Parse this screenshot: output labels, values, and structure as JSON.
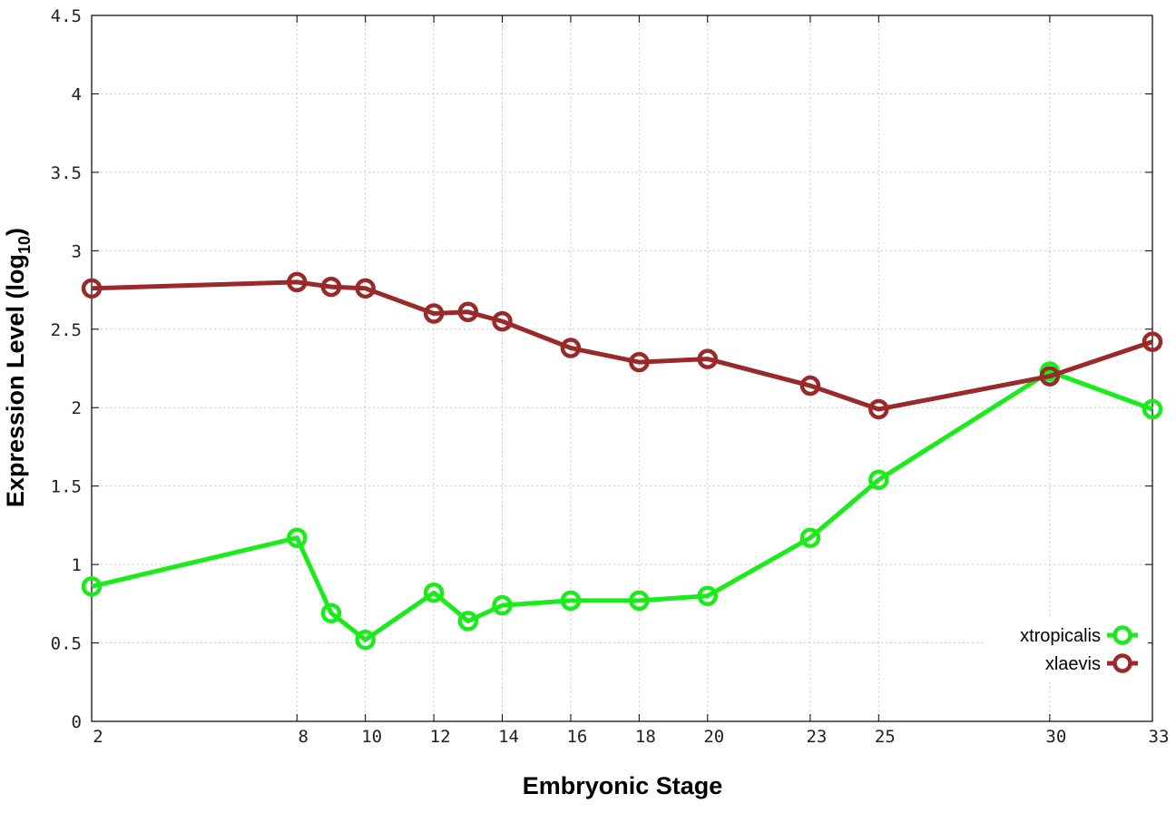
{
  "chart_data": {
    "type": "line",
    "title": "",
    "xlabel": "Embryonic Stage",
    "ylabel_main": "Expression Level (log",
    "ylabel_sub": "10",
    "ylabel_close": ")",
    "x": [
      2,
      8,
      9,
      10,
      12,
      13,
      14,
      16,
      18,
      20,
      23,
      25,
      30,
      33
    ],
    "x_ticks": [
      2,
      8,
      10,
      12,
      14,
      16,
      18,
      20,
      23,
      25,
      30,
      33
    ],
    "x_tick_labels": [
      "2",
      "8",
      "10",
      "12",
      "14",
      "16",
      "18",
      "20",
      "23",
      "25",
      "30",
      "33"
    ],
    "xlim": [
      2,
      33
    ],
    "y_ticks": [
      0,
      0.5,
      1,
      1.5,
      2,
      2.5,
      3,
      3.5,
      4,
      4.5
    ],
    "y_tick_labels": [
      "0",
      "0.5",
      "1",
      "1.5",
      "2",
      "2.5",
      "3",
      "3.5",
      "4",
      "4.5"
    ],
    "ylim": [
      0,
      4.5
    ],
    "grid": true,
    "legend_position": "bottom-right",
    "series": [
      {
        "name": "xtropicalis",
        "color": "#1aeb1a",
        "values": [
          0.86,
          1.17,
          0.69,
          0.52,
          0.82,
          0.64,
          0.74,
          0.77,
          0.77,
          0.8,
          1.17,
          1.54,
          2.23,
          1.99
        ]
      },
      {
        "name": "xlaevis",
        "color": "#9a2a2a",
        "values": [
          2.76,
          2.8,
          2.77,
          2.76,
          2.6,
          2.61,
          2.55,
          2.38,
          2.29,
          2.31,
          2.14,
          1.99,
          2.2,
          2.42
        ]
      }
    ]
  }
}
